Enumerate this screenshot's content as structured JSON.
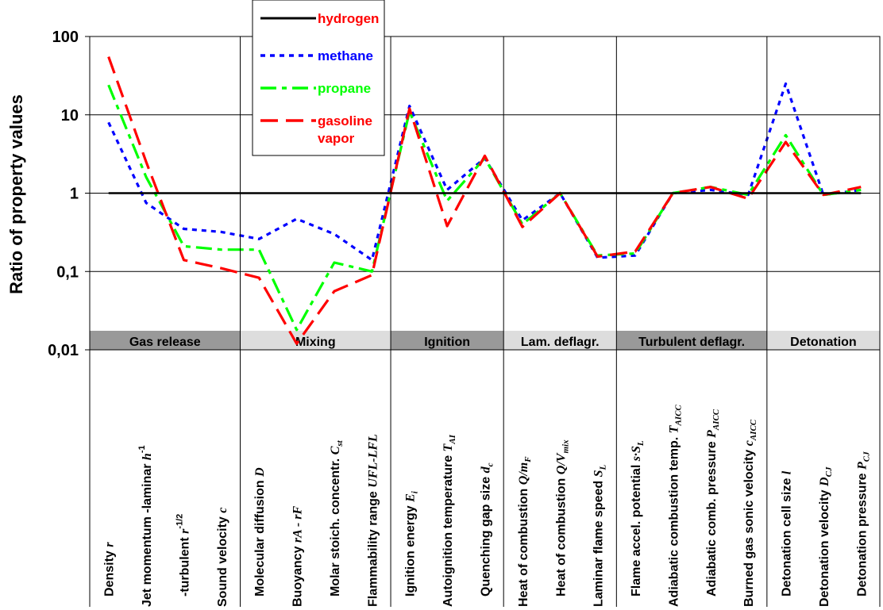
{
  "chart_data": {
    "type": "line",
    "ylabel": "Ratio of property values",
    "yscale": "log",
    "ylim": [
      0.01,
      100
    ],
    "yticks": [
      "0,01",
      "0,1",
      "1",
      "10",
      "100"
    ],
    "ytick_values": [
      0.01,
      0.1,
      1,
      10,
      100
    ],
    "grid": "horizontal",
    "legend_position": "top-left",
    "categories": [
      {
        "label": "Density",
        "symbol": "r"
      },
      {
        "label": "Jet momentum -laminar",
        "symbol": "h",
        "sup": "-1"
      },
      {
        "label": "-turbulent",
        "symbol": "r",
        "sup": "-1/2"
      },
      {
        "label": "Sound velocity",
        "symbol": "c"
      },
      {
        "label": "Molecular diffusion",
        "symbol": "D"
      },
      {
        "label": "Buoyancy",
        "symbol": "rA - rF"
      },
      {
        "label": "Molar stoich. concentr.",
        "symbol": "C",
        "sub": "st"
      },
      {
        "label": "Flammability range",
        "symbol": "UFL-LFL"
      },
      {
        "label": "Ignition energy",
        "symbol": "E",
        "sub": "i"
      },
      {
        "label": "Autoignition temperature",
        "symbol": "T",
        "sub": "AI"
      },
      {
        "label": "Quenching gap size",
        "symbol": "d",
        "sub": "c"
      },
      {
        "label": "Heat of combustion",
        "symbol": "Q/m",
        "sub": "F"
      },
      {
        "label": "Heat of combustion",
        "symbol": "Q/V",
        "sub": "mix"
      },
      {
        "label": "Laminar flame speed",
        "symbol": "S",
        "sub": "L"
      },
      {
        "label": "Flame accel. potential",
        "symbol": "s·S",
        "sub": "L"
      },
      {
        "label": "Adiabatic combustion temp.",
        "symbol": "T",
        "sub": "AICC"
      },
      {
        "label": "Adiabatic comb. pressure",
        "symbol": "P",
        "sub": "AICC"
      },
      {
        "label": "Burned gas sonic velocity",
        "symbol": "c",
        "sub": "AICC"
      },
      {
        "label": "Detonation cell size",
        "symbol": "l"
      },
      {
        "label": "Detonation velocity",
        "symbol": "D",
        "sub": "CJ"
      },
      {
        "label": "Detonation pressure",
        "symbol": "P",
        "sub": "CJ"
      }
    ],
    "groups": [
      {
        "label": "Gas release",
        "count": 4
      },
      {
        "label": "Mixing",
        "count": 4
      },
      {
        "label": "Ignition",
        "count": 3
      },
      {
        "label": "Lam. deflagr.",
        "count": 3
      },
      {
        "label": "Turbulent deflagr.",
        "count": 4
      },
      {
        "label": "Detonation",
        "count": 3
      }
    ],
    "series": [
      {
        "name": "hydrogen",
        "label_lines": [
          "hydrogen"
        ],
        "color": "#000000",
        "dash": "solid",
        "values": [
          1,
          1,
          1,
          1,
          1,
          1,
          1,
          1,
          1,
          1,
          1,
          1,
          1,
          1,
          1,
          1,
          1,
          1,
          1,
          1,
          1
        ]
      },
      {
        "name": "methane",
        "label_lines": [
          "methane"
        ],
        "color": "#0000ff",
        "dash": "dot",
        "values": [
          8,
          0.75,
          0.35,
          0.32,
          0.26,
          0.47,
          0.3,
          0.14,
          13,
          1.1,
          2.8,
          0.45,
          1.0,
          0.15,
          0.16,
          1.0,
          1.1,
          0.95,
          25,
          0.95,
          1.1
        ]
      },
      {
        "name": "propane",
        "label_lines": [
          "propane"
        ],
        "color": "#00ff00",
        "dash": "dashdot",
        "values": [
          24,
          1.6,
          0.21,
          0.19,
          0.19,
          0.018,
          0.13,
          0.1,
          11,
          0.8,
          2.8,
          0.4,
          1.0,
          0.16,
          0.17,
          1.0,
          1.2,
          0.95,
          5.5,
          0.95,
          1.1
        ]
      },
      {
        "name": "gasoline vapor",
        "label_lines": [
          "gasoline",
          "vapor"
        ],
        "color": "#ff0000",
        "dash": "dash",
        "values": [
          55,
          2.5,
          0.14,
          0.11,
          0.083,
          0.012,
          0.056,
          0.09,
          12,
          0.38,
          3.0,
          0.37,
          1.0,
          0.155,
          0.18,
          1.0,
          1.2,
          0.85,
          4.5,
          0.95,
          1.2
        ]
      }
    ]
  }
}
